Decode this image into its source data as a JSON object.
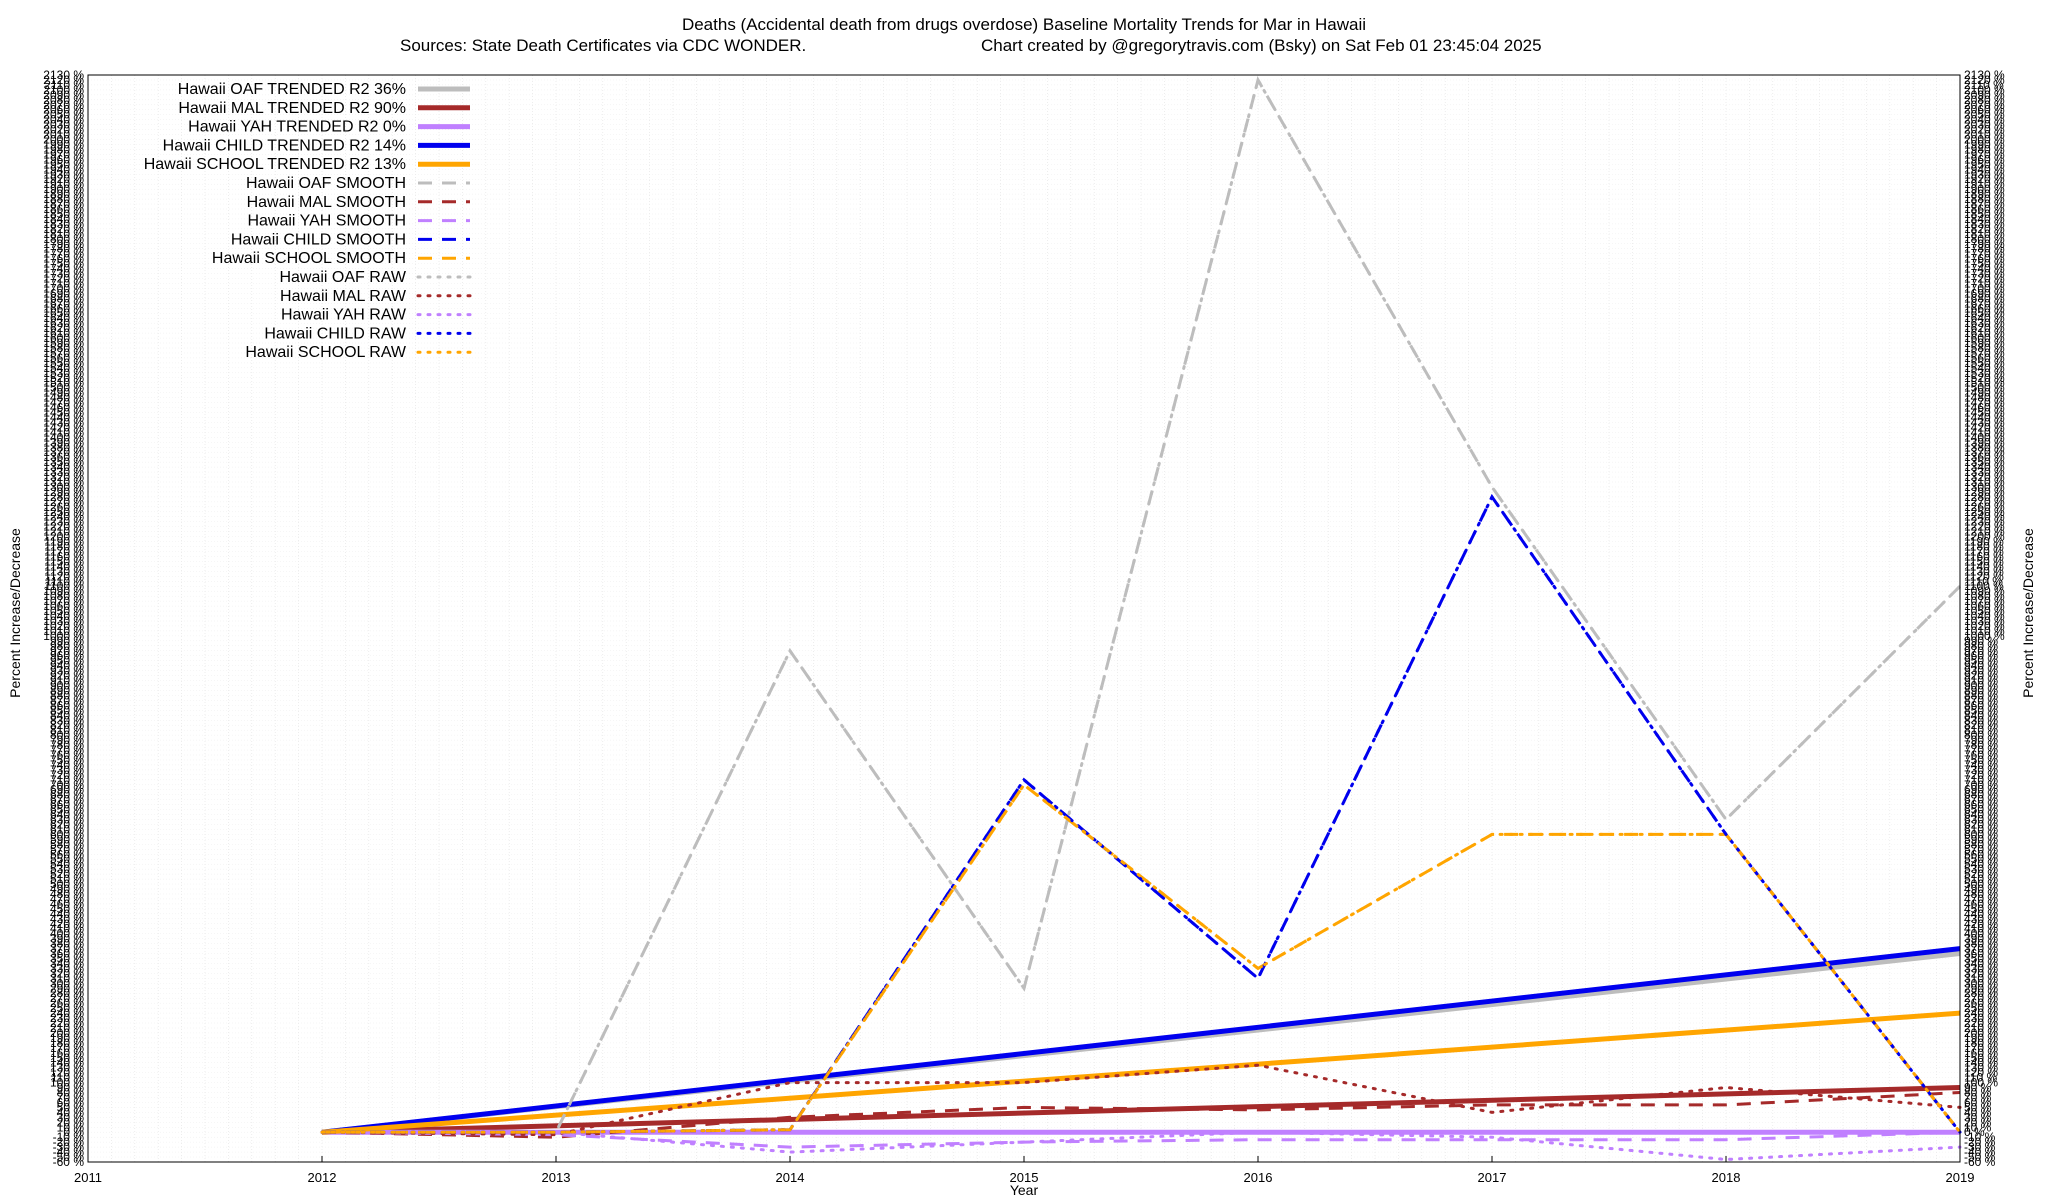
{
  "chart_data": {
    "type": "line",
    "title": "Deaths (Accidental death from drugs overdose)  Baseline Mortality Trends for Mar in Hawaii",
    "subtitle_left": "Sources: State Death Certificates via CDC WONDER.",
    "subtitle_right": "Chart created by @gregorytravis.com (Bsky) on Sat Feb 01 23:45:04 2025",
    "xlabel": "Year",
    "ylabel": "Percent Increase/Decrease",
    "xlim": [
      2011,
      2019
    ],
    "ylim": [
      -60,
      2130
    ],
    "x_ticks": [
      "2011",
      "2012",
      "2013",
      "2014",
      "2015",
      "2016",
      "2017",
      "2018",
      "2019"
    ],
    "grid": true,
    "legend_position": "top-left",
    "series": [
      {
        "name": "Hawaii OAF TRENDED R2  36%",
        "style": "solid",
        "color": "#bdbdbd",
        "width": 5,
        "points": [
          [
            2012,
            0
          ],
          [
            2019,
            360
          ]
        ]
      },
      {
        "name": "Hawaii MAL TRENDED R2  90%",
        "style": "solid",
        "color": "#a52a2a",
        "width": 5,
        "points": [
          [
            2012,
            0
          ],
          [
            2019,
            90
          ]
        ]
      },
      {
        "name": "Hawaii YAH TRENDED R2   0%",
        "style": "solid",
        "color": "#c080ff",
        "width": 5,
        "points": [
          [
            2012,
            0
          ],
          [
            2019,
            0
          ]
        ]
      },
      {
        "name": "Hawaii CHILD TRENDED R2  14%",
        "style": "solid",
        "color": "#0000ee",
        "width": 5,
        "points": [
          [
            2012,
            0
          ],
          [
            2019,
            370
          ]
        ]
      },
      {
        "name": "Hawaii SCHOOL TRENDED R2  13%",
        "style": "solid",
        "color": "#ffa500",
        "width": 5,
        "points": [
          [
            2012,
            0
          ],
          [
            2019,
            240
          ]
        ]
      },
      {
        "name": "Hawaii OAF SMOOTH",
        "style": "dashed",
        "color": "#bdbdbd",
        "width": 3,
        "points": [
          [
            2012,
            0
          ],
          [
            2013,
            0
          ],
          [
            2014,
            970
          ],
          [
            2015,
            290
          ],
          [
            2016,
            2120
          ],
          [
            2017,
            1300
          ],
          [
            2018,
            630
          ],
          [
            2019,
            1100
          ]
        ]
      },
      {
        "name": "Hawaii MAL SMOOTH",
        "style": "dashed",
        "color": "#a52a2a",
        "width": 3,
        "points": [
          [
            2012,
            0
          ],
          [
            2013,
            -10
          ],
          [
            2014,
            30
          ],
          [
            2015,
            50
          ],
          [
            2016,
            45
          ],
          [
            2017,
            55
          ],
          [
            2018,
            55
          ],
          [
            2019,
            80
          ]
        ]
      },
      {
        "name": "Hawaii YAH SMOOTH",
        "style": "dashed",
        "color": "#c080ff",
        "width": 3,
        "points": [
          [
            2012,
            0
          ],
          [
            2013,
            -5
          ],
          [
            2014,
            -30
          ],
          [
            2015,
            -20
          ],
          [
            2016,
            -15
          ],
          [
            2017,
            -15
          ],
          [
            2018,
            -15
          ],
          [
            2019,
            0
          ]
        ]
      },
      {
        "name": "Hawaii CHILD SMOOTH",
        "style": "dashed",
        "color": "#0000ee",
        "width": 3,
        "points": [
          [
            2012,
            0
          ],
          [
            2013,
            0
          ],
          [
            2014,
            5
          ],
          [
            2015,
            710
          ],
          [
            2016,
            310
          ],
          [
            2017,
            1280
          ],
          [
            2018,
            600
          ],
          [
            2019,
            0
          ]
        ]
      },
      {
        "name": "Hawaii SCHOOL SMOOTH",
        "style": "dashed",
        "color": "#ffa500",
        "width": 3,
        "points": [
          [
            2012,
            0
          ],
          [
            2013,
            0
          ],
          [
            2014,
            5
          ],
          [
            2015,
            700
          ],
          [
            2016,
            330
          ],
          [
            2017,
            600
          ],
          [
            2018,
            600
          ],
          [
            2019,
            0
          ]
        ]
      },
      {
        "name": "Hawaii OAF RAW",
        "style": "dotted",
        "color": "#bdbdbd",
        "width": 3,
        "points": [
          [
            2012,
            0
          ],
          [
            2013,
            0
          ],
          [
            2014,
            970
          ],
          [
            2015,
            290
          ],
          [
            2016,
            2120
          ],
          [
            2017,
            1300
          ],
          [
            2018,
            630
          ],
          [
            2019,
            1100
          ]
        ]
      },
      {
        "name": "Hawaii MAL RAW",
        "style": "dotted",
        "color": "#a52a2a",
        "width": 3,
        "points": [
          [
            2012,
            0
          ],
          [
            2013,
            -5
          ],
          [
            2014,
            100
          ],
          [
            2015,
            100
          ],
          [
            2016,
            135
          ],
          [
            2017,
            40
          ],
          [
            2018,
            90
          ],
          [
            2019,
            50
          ]
        ]
      },
      {
        "name": "Hawaii YAH RAW",
        "style": "dotted",
        "color": "#c080ff",
        "width": 3,
        "points": [
          [
            2012,
            0
          ],
          [
            2013,
            0
          ],
          [
            2014,
            -40
          ],
          [
            2015,
            -20
          ],
          [
            2016,
            0
          ],
          [
            2017,
            -10
          ],
          [
            2018,
            -55
          ],
          [
            2019,
            -30
          ]
        ]
      },
      {
        "name": "Hawaii CHILD RAW",
        "style": "dotted",
        "color": "#0000ee",
        "width": 3,
        "points": [
          [
            2012,
            0
          ],
          [
            2013,
            0
          ],
          [
            2014,
            5
          ],
          [
            2015,
            710
          ],
          [
            2016,
            310
          ],
          [
            2017,
            1280
          ],
          [
            2018,
            600
          ],
          [
            2019,
            0
          ]
        ]
      },
      {
        "name": "Hawaii SCHOOL RAW",
        "style": "dotted",
        "color": "#ffa500",
        "width": 3,
        "points": [
          [
            2012,
            0
          ],
          [
            2013,
            0
          ],
          [
            2014,
            5
          ],
          [
            2015,
            700
          ],
          [
            2016,
            330
          ],
          [
            2017,
            600
          ],
          [
            2018,
            600
          ],
          [
            2019,
            0
          ]
        ]
      }
    ]
  }
}
